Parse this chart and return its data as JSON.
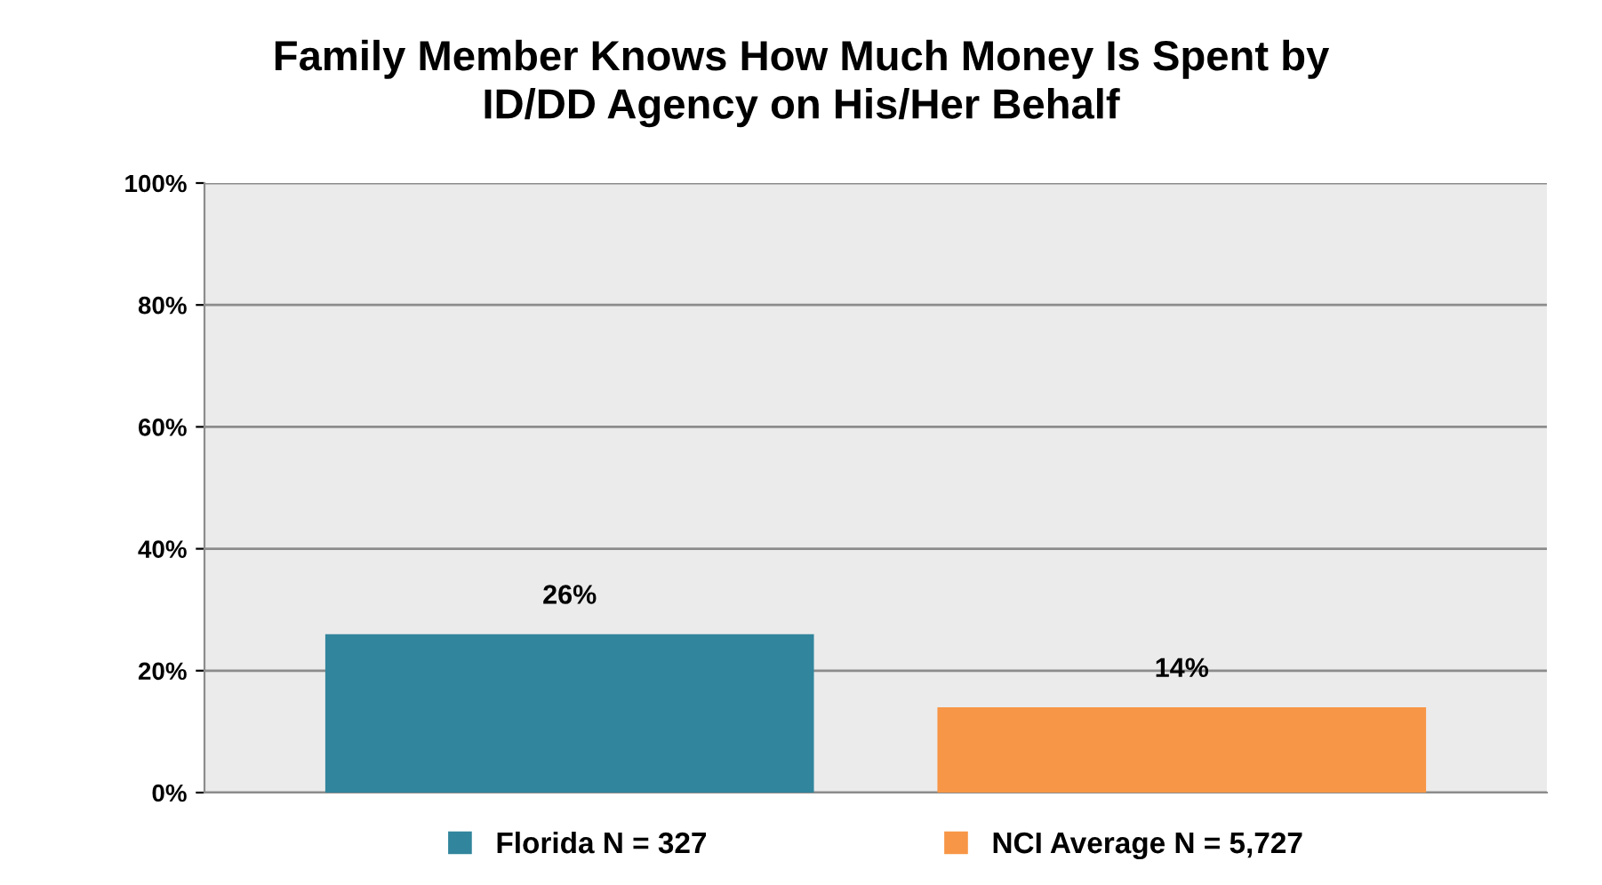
{
  "chart_data": {
    "type": "bar",
    "title": "Family Member Knows How Much Money Is Spent by\nID/DD Agency on His/Her Behalf",
    "categories": [
      null
    ],
    "series": [
      {
        "name": "Florida N = 327",
        "color": "#31859c",
        "values": [
          26
        ],
        "value_labels": [
          "26%"
        ]
      },
      {
        "name": "NCI Average N = 5,727",
        "color": "#f79646",
        "values": [
          14
        ],
        "value_labels": [
          "14%"
        ]
      }
    ],
    "ylim": [
      0,
      100
    ],
    "yticks": [
      {
        "value": 0,
        "label": "0%"
      },
      {
        "value": 20,
        "label": "20%"
      },
      {
        "value": 40,
        "label": "40%"
      },
      {
        "value": 60,
        "label": "60%"
      },
      {
        "value": 80,
        "label": "80%"
      },
      {
        "value": 100,
        "label": "100%"
      }
    ],
    "grid": "y",
    "legend": "bottom"
  }
}
